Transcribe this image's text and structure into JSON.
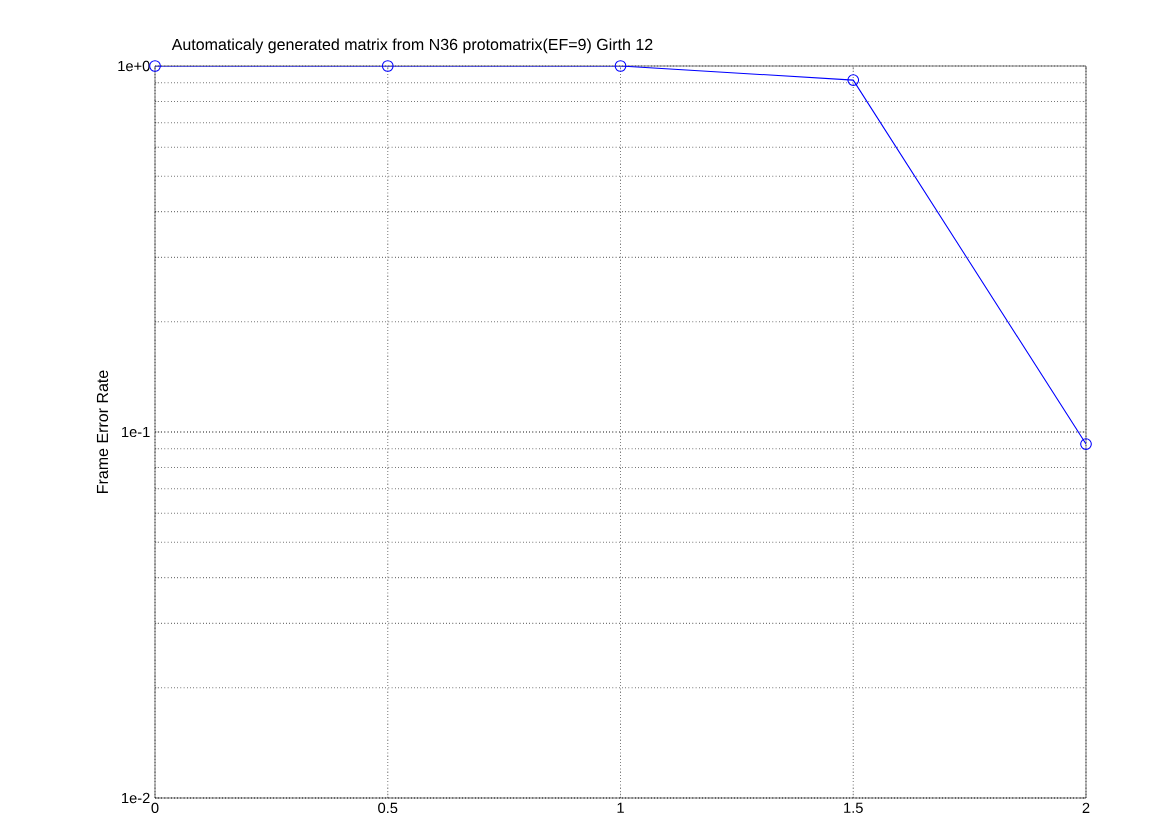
{
  "chart_data": {
    "type": "line",
    "title": "Automaticaly generated matrix from N36 protomatrix(EF=9) Girth 12",
    "ylabel": "Frame Error Rate",
    "x": [
      0,
      0.5,
      1,
      1.5,
      2
    ],
    "series": [
      {
        "color": "#0000ff",
        "values": [
          1,
          1,
          1,
          0.915,
          0.0927
        ]
      }
    ],
    "xlim": [
      0,
      2
    ],
    "xticks": [
      0,
      0.5,
      1,
      1.5,
      2
    ],
    "ylim": [
      0.01,
      1
    ],
    "yticks": [
      {
        "value": 0.01,
        "label": "1e-2"
      },
      {
        "value": 0.1,
        "label": "1e-1"
      },
      {
        "value": 1,
        "label": "1e+0"
      }
    ],
    "log": "y",
    "grid": true,
    "marker": "circle",
    "line_style": "solid"
  }
}
